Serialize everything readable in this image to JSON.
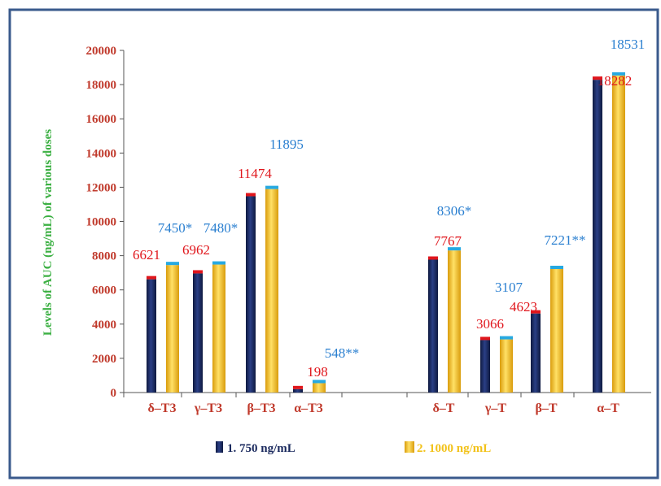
{
  "chart_data": {
    "type": "bar",
    "ylabel": "Levels of AUC (ng/mL) of various doses",
    "ylim": [
      0,
      20000
    ],
    "yticks": [
      0,
      2000,
      4000,
      6000,
      8000,
      10000,
      12000,
      14000,
      16000,
      18000,
      20000
    ],
    "categories": [
      "δ–T3",
      "γ–T3",
      "β–T3",
      "α–T3",
      "δ–T",
      "γ–T",
      "β–T",
      "α–T"
    ],
    "series": [
      {
        "name": "1. 750 ng/mL",
        "color": "#1b2a5e",
        "label_color": "#e0161c",
        "values": [
          6621,
          6962,
          11474,
          198,
          7767,
          3066,
          4623,
          18282
        ],
        "labels": [
          "6621",
          "6962",
          "11474",
          "198",
          "7767",
          "3066",
          "4623",
          "18282"
        ]
      },
      {
        "name": "2. 1000 ng/mL",
        "color": "#f2c21a",
        "label_color": "#2a7fd0",
        "values": [
          7450,
          7480,
          11895,
          548,
          8306,
          3107,
          7221,
          18531
        ],
        "labels": [
          "7450*",
          "7480*",
          "11895",
          "548**",
          "8306*",
          "3107",
          "7221**",
          "18531"
        ]
      }
    ],
    "legend": [
      "1. 750 ng/mL",
      "2. 1000 ng/mL"
    ],
    "legend_position": "bottom",
    "grid": false,
    "colors": {
      "frame": "#3a5a8c",
      "axis_text": "#c0392b",
      "ylabel": "#3cb043",
      "legend_text_1": "#1b2a5e",
      "legend_text_2": "#f2c21a"
    }
  }
}
